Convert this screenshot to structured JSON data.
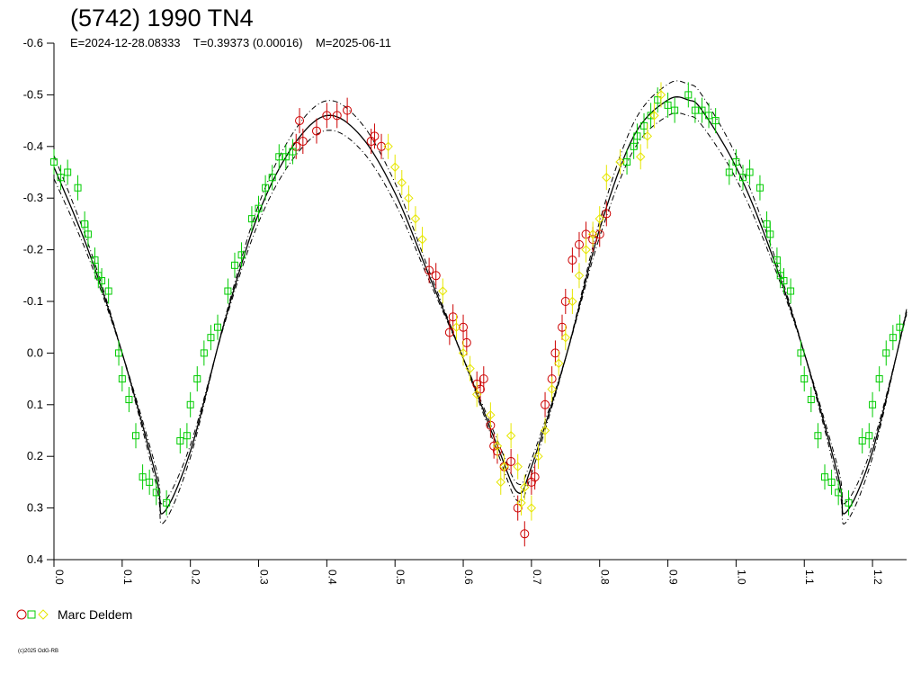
{
  "title": "(5742) 1990 TN4",
  "subtitle": "E=2024-12-28.08333    T=0.39373 (0.00016)    M=2025-06-11",
  "legend_label": "Marc Deldem",
  "copyright": "(c)2025 OdG-RB",
  "colors": {
    "red": "#cc0000",
    "green": "#00cc00",
    "yellow": "#e6e600",
    "curve": "#000000"
  },
  "chart_data": {
    "type": "scatter",
    "title": "(5742) 1990 TN4",
    "xlabel": "",
    "ylabel": "",
    "xlim": [
      0.0,
      1.25
    ],
    "ylim": [
      0.4,
      -0.6
    ],
    "y_inverted": true,
    "x_ticks": [
      "0.0",
      "0.1",
      "0.2",
      "0.3",
      "0.4",
      "0.5",
      "0.6",
      "0.7",
      "0.8",
      "0.9",
      "1.0",
      "1.1",
      "1.2"
    ],
    "y_ticks": [
      "-0.6",
      "-0.5",
      "-0.4",
      "-0.3",
      "-0.2",
      "-0.1",
      "0.0",
      "0.1",
      "0.2",
      "0.3",
      "0.4"
    ],
    "fit_curve": {
      "x": [
        0.0,
        0.05,
        0.1,
        0.15,
        0.16,
        0.2,
        0.25,
        0.3,
        0.35,
        0.4,
        0.45,
        0.5,
        0.55,
        0.6,
        0.65,
        0.68,
        0.7,
        0.75,
        0.8,
        0.85,
        0.9,
        0.93,
        0.95,
        1.0,
        1.05,
        1.1,
        1.15,
        1.16,
        1.2,
        1.25
      ],
      "y": [
        -0.36,
        -0.2,
        0.0,
        0.24,
        0.31,
        0.19,
        -0.06,
        -0.27,
        -0.4,
        -0.46,
        -0.42,
        -0.31,
        -0.15,
        0.01,
        0.18,
        0.27,
        0.22,
        0.01,
        -0.24,
        -0.42,
        -0.49,
        -0.49,
        -0.47,
        -0.36,
        -0.2,
        0.0,
        0.24,
        0.31,
        0.19,
        -0.08
      ],
      "band": 0.025
    },
    "series": [
      {
        "name": "Marc Deldem",
        "marker": "circle",
        "color": "red",
        "x": [
          0.355,
          0.36,
          0.365,
          0.385,
          0.4,
          0.415,
          0.43,
          0.465,
          0.47,
          0.48,
          0.55,
          0.56,
          0.58,
          0.585,
          0.6,
          0.605,
          0.62,
          0.625,
          0.63,
          0.64,
          0.645,
          0.65,
          0.66,
          0.67,
          0.68,
          0.69,
          0.7,
          0.705,
          0.72,
          0.73,
          0.735,
          0.745,
          0.75,
          0.76,
          0.77,
          0.78,
          0.79,
          0.8,
          0.81
        ],
        "y": [
          -0.4,
          -0.45,
          -0.41,
          -0.43,
          -0.46,
          -0.46,
          -0.47,
          -0.41,
          -0.42,
          -0.4,
          -0.16,
          -0.15,
          -0.04,
          -0.07,
          -0.05,
          -0.02,
          0.06,
          0.07,
          0.05,
          0.14,
          0.18,
          0.19,
          0.22,
          0.21,
          0.3,
          0.35,
          0.25,
          0.24,
          0.1,
          0.05,
          0.0,
          -0.05,
          -0.1,
          -0.18,
          -0.21,
          -0.23,
          -0.22,
          -0.23,
          -0.27
        ]
      },
      {
        "name": "Marc Deldem",
        "marker": "square",
        "color": "green",
        "x": [
          0.0,
          0.01,
          0.02,
          0.035,
          0.045,
          0.05,
          0.06,
          0.065,
          0.07,
          0.08,
          0.095,
          0.1,
          0.11,
          0.12,
          0.13,
          0.14,
          0.15,
          0.165,
          0.185,
          0.195,
          0.2,
          0.21,
          0.22,
          0.23,
          0.24,
          0.255,
          0.265,
          0.275,
          0.29,
          0.3,
          0.31,
          0.32,
          0.33,
          0.34,
          0.35,
          0.84,
          0.85,
          0.855,
          0.865,
          0.875,
          0.885,
          0.9,
          0.91,
          0.93,
          0.94,
          0.95,
          0.96,
          0.97,
          0.99,
          1.0,
          1.01,
          1.02,
          1.035,
          1.045,
          1.05,
          1.06,
          1.065,
          1.07,
          1.08,
          1.095,
          1.1,
          1.11,
          1.12,
          1.13,
          1.14,
          1.15,
          1.165,
          1.185,
          1.195,
          1.2,
          1.21,
          1.22,
          1.23,
          1.24
        ],
        "y": [
          -0.37,
          -0.34,
          -0.35,
          -0.32,
          -0.25,
          -0.23,
          -0.18,
          -0.15,
          -0.14,
          -0.12,
          0.0,
          0.05,
          0.09,
          0.16,
          0.24,
          0.25,
          0.27,
          0.29,
          0.17,
          0.16,
          0.1,
          0.05,
          0.0,
          -0.03,
          -0.05,
          -0.12,
          -0.17,
          -0.19,
          -0.26,
          -0.28,
          -0.32,
          -0.34,
          -0.38,
          -0.38,
          -0.39,
          -0.37,
          -0.4,
          -0.42,
          -0.44,
          -0.46,
          -0.49,
          -0.48,
          -0.47,
          -0.5,
          -0.47,
          -0.47,
          -0.46,
          -0.45,
          -0.35,
          -0.37,
          -0.34,
          -0.35,
          -0.32,
          -0.25,
          -0.23,
          -0.18,
          -0.15,
          -0.14,
          -0.12,
          0.0,
          0.05,
          0.09,
          0.16,
          0.24,
          0.25,
          0.27,
          0.29,
          0.17,
          0.16,
          0.1,
          0.05,
          0.0,
          -0.03,
          -0.05
        ]
      },
      {
        "name": "Marc Deldem",
        "marker": "diamond",
        "color": "yellow",
        "x": [
          0.49,
          0.5,
          0.51,
          0.52,
          0.53,
          0.54,
          0.57,
          0.59,
          0.6,
          0.61,
          0.62,
          0.64,
          0.65,
          0.655,
          0.66,
          0.67,
          0.68,
          0.685,
          0.69,
          0.7,
          0.71,
          0.72,
          0.73,
          0.74,
          0.75,
          0.76,
          0.77,
          0.78,
          0.79,
          0.8,
          0.81,
          0.83,
          0.86,
          0.87,
          0.88,
          0.89
        ],
        "y": [
          -0.4,
          -0.36,
          -0.33,
          -0.3,
          -0.26,
          -0.22,
          -0.12,
          -0.05,
          0.0,
          0.03,
          0.08,
          0.12,
          0.18,
          0.25,
          0.22,
          0.16,
          0.22,
          0.29,
          0.26,
          0.3,
          0.2,
          0.15,
          0.07,
          0.02,
          -0.03,
          -0.1,
          -0.15,
          -0.2,
          -0.23,
          -0.26,
          -0.34,
          -0.37,
          -0.38,
          -0.42,
          -0.46,
          -0.5
        ]
      }
    ]
  }
}
